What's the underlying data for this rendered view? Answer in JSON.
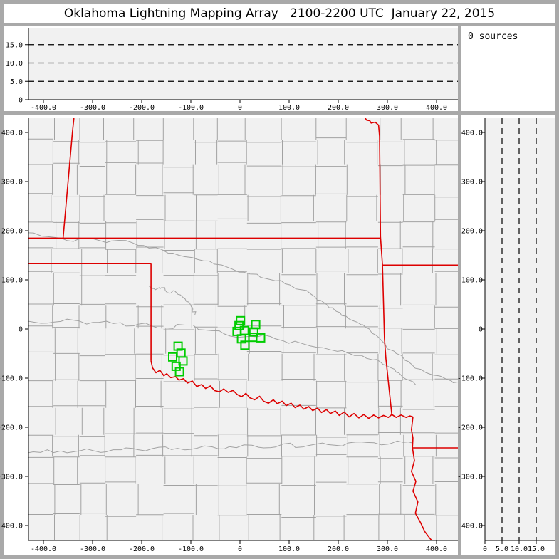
{
  "title": "Oklahoma Lightning Mapping Array   2100-2200 UTC  January 22, 2015",
  "annotations": {
    "sources_count_label": "0 sources"
  },
  "colors": {
    "frame": "#a9a9a9",
    "panel_bg": "#ffffff",
    "plot_bg": "#f1f1f1",
    "county_line": "#a2a2a2",
    "river_line": "#a2a2a2",
    "state_border": "#dd0000",
    "station": "#00cc00",
    "axis": "#000000"
  },
  "chart_data": [
    {
      "id": "alt_vs_ew",
      "type": "scatter",
      "title": "",
      "x_range_km": [
        -430,
        443
      ],
      "y_range_km": [
        0,
        19.5
      ],
      "x_tick_values": [
        -400,
        -300,
        -200,
        -100,
        0,
        100,
        200,
        300,
        400
      ],
      "x_tick_labels": [
        "-400.0",
        "-300.0",
        "-200.0",
        "-100.0",
        "0",
        "100.0",
        "200.0",
        "300.0",
        "400.0"
      ],
      "y_tick_values": [
        15,
        10,
        5,
        0
      ],
      "y_tick_labels": [
        "15.0",
        "10.0",
        "5.0",
        "0"
      ],
      "dashed_gridlines_km": [
        5,
        10,
        15
      ],
      "points": [],
      "grid": "dashed-horizontal",
      "legend": "none"
    },
    {
      "id": "plan_view_map",
      "type": "scatter",
      "title": "",
      "x_range_km": [
        -430,
        443
      ],
      "y_range_km": [
        -430,
        429
      ],
      "x_tick_values": [
        -400,
        -300,
        -200,
        -100,
        0,
        100,
        200,
        300,
        400
      ],
      "x_tick_labels": [
        "-400.0",
        "-300.0",
        "-200.0",
        "-100.0",
        "0",
        "100.0",
        "200.0",
        "300.0",
        "400.0"
      ],
      "y_tick_values": [
        400,
        300,
        200,
        100,
        0,
        -100,
        -200,
        -300,
        -400
      ],
      "y_tick_labels": [
        "400.0",
        "300.0",
        "200.0",
        "100.0",
        "0",
        "-100.0",
        "-200.0",
        "-300.0",
        "-400.0"
      ],
      "series": [
        {
          "name": "lma_stations",
          "marker": "open-square",
          "color": "#00cc00",
          "points_km": [
            [
              1,
              17
            ],
            [
              -2,
              7
            ],
            [
              -6,
              -5
            ],
            [
              9,
              -3
            ],
            [
              32,
              9
            ],
            [
              28,
              -6
            ],
            [
              3,
              -20
            ],
            [
              26,
              -17
            ],
            [
              42,
              -18
            ],
            [
              10,
              -33
            ],
            [
              -126,
              -35
            ],
            [
              -120,
              -49
            ],
            [
              -137,
              -57
            ],
            [
              -116,
              -65
            ],
            [
              -130,
              -76
            ],
            [
              -123,
              -87
            ]
          ]
        }
      ],
      "state_borders_km": [
        [
          [
            -432,
            185
          ],
          [
            285,
            185
          ]
        ],
        [
          [
            -338,
            429
          ],
          [
            -341,
            400
          ],
          [
            -360,
            185
          ]
        ],
        [
          [
            255,
            429
          ],
          [
            258,
            425
          ],
          [
            264,
            424
          ],
          [
            267,
            419
          ],
          [
            275,
            421
          ],
          [
            282,
            415
          ],
          [
            284,
            392
          ],
          [
            286,
            188
          ],
          [
            290,
            130
          ]
        ],
        [
          [
            290,
            130
          ],
          [
            444,
            130
          ]
        ],
        [
          [
            290,
            130
          ],
          [
            294,
            -20
          ],
          [
            297,
            -60
          ],
          [
            309,
            -174
          ]
        ],
        [
          [
            -432,
            133
          ],
          [
            -181,
            133
          ]
        ],
        [
          [
            -181,
            133
          ],
          [
            -181,
            -65
          ]
        ],
        [
          [
            -181,
            -65
          ],
          [
            -178,
            -79
          ],
          [
            -171,
            -89
          ],
          [
            -163,
            -84
          ],
          [
            -155,
            -95
          ],
          [
            -149,
            -91
          ],
          [
            -141,
            -99
          ],
          [
            -131,
            -97
          ],
          [
            -124,
            -104
          ],
          [
            -115,
            -101
          ],
          [
            -107,
            -110
          ],
          [
            -97,
            -106
          ],
          [
            -88,
            -117
          ],
          [
            -78,
            -113
          ],
          [
            -70,
            -121
          ],
          [
            -60,
            -116
          ],
          [
            -52,
            -125
          ],
          [
            -42,
            -128
          ],
          [
            -33,
            -122
          ],
          [
            -24,
            -129
          ],
          [
            -14,
            -125
          ],
          [
            -6,
            -133
          ],
          [
            3,
            -138
          ],
          [
            12,
            -131
          ],
          [
            20,
            -140
          ],
          [
            30,
            -144
          ],
          [
            40,
            -137
          ],
          [
            48,
            -147
          ],
          [
            58,
            -151
          ],
          [
            68,
            -144
          ],
          [
            76,
            -152
          ],
          [
            86,
            -147
          ],
          [
            94,
            -156
          ],
          [
            104,
            -151
          ],
          [
            112,
            -160
          ],
          [
            122,
            -155
          ],
          [
            130,
            -163
          ],
          [
            140,
            -158
          ],
          [
            148,
            -166
          ],
          [
            158,
            -161
          ],
          [
            166,
            -170
          ],
          [
            176,
            -164
          ],
          [
            184,
            -172
          ],
          [
            194,
            -167
          ],
          [
            202,
            -176
          ],
          [
            212,
            -169
          ],
          [
            222,
            -179
          ],
          [
            232,
            -172
          ],
          [
            242,
            -181
          ],
          [
            252,
            -174
          ],
          [
            262,
            -182
          ],
          [
            272,
            -175
          ],
          [
            282,
            -181
          ],
          [
            292,
            -176
          ],
          [
            302,
            -180
          ],
          [
            309,
            -174
          ],
          [
            318,
            -180
          ],
          [
            328,
            -175
          ],
          [
            338,
            -180
          ],
          [
            346,
            -177
          ],
          [
            352,
            -179
          ]
        ],
        [
          [
            352,
            -179
          ],
          [
            349,
            -205
          ],
          [
            352,
            -222
          ],
          [
            351,
            -242
          ]
        ],
        [
          [
            351,
            -242
          ],
          [
            444,
            -242
          ]
        ],
        [
          [
            351,
            -242
          ],
          [
            355,
            -268
          ],
          [
            349,
            -290
          ],
          [
            358,
            -310
          ],
          [
            352,
            -330
          ],
          [
            362,
            -352
          ],
          [
            357,
            -375
          ],
          [
            368,
            -395
          ],
          [
            376,
            -412
          ],
          [
            388,
            -428
          ],
          [
            396,
            -434
          ]
        ]
      ],
      "rivers_km": [
        [
          [
            -432,
            196
          ],
          [
            -392,
            188
          ],
          [
            -352,
            180
          ],
          [
            -312,
            184
          ],
          [
            -272,
            176
          ],
          [
            -232,
            180
          ],
          [
            -196,
            170
          ],
          [
            -160,
            162
          ],
          [
            -124,
            150
          ],
          [
            -88,
            142
          ],
          [
            -52,
            132
          ],
          [
            -16,
            122
          ],
          [
            20,
            112
          ],
          [
            56,
            102
          ],
          [
            92,
            92
          ],
          [
            124,
            80
          ],
          [
            152,
            66
          ],
          [
            176,
            50
          ],
          [
            196,
            36
          ],
          [
            216,
            26
          ],
          [
            238,
            14
          ],
          [
            258,
            2
          ],
          [
            276,
            -12
          ],
          [
            296,
            -32
          ],
          [
            318,
            -50
          ],
          [
            342,
            -66
          ],
          [
            368,
            -82
          ],
          [
            394,
            -94
          ],
          [
            420,
            -102
          ],
          [
            444,
            -108
          ]
        ],
        [
          [
            -432,
            16
          ],
          [
            -392,
            12
          ],
          [
            -352,
            20
          ],
          [
            -312,
            10
          ],
          [
            -272,
            16
          ],
          [
            -232,
            6
          ],
          [
            -192,
            12
          ],
          [
            -152,
            2
          ],
          [
            -112,
            8
          ],
          [
            -72,
            -2
          ],
          [
            -32,
            -10
          ],
          [
            8,
            -16
          ],
          [
            48,
            -12
          ],
          [
            88,
            -24
          ],
          [
            128,
            -30
          ],
          [
            168,
            -38
          ],
          [
            208,
            -44
          ],
          [
            248,
            -54
          ],
          [
            278,
            -62
          ],
          [
            298,
            -74
          ],
          [
            318,
            -88
          ],
          [
            338,
            -102
          ],
          [
            358,
            -114
          ]
        ],
        [
          [
            -186,
            88
          ],
          [
            -172,
            80
          ],
          [
            -160,
            84
          ],
          [
            -148,
            74
          ],
          [
            -136,
            78
          ],
          [
            -124,
            70
          ],
          [
            -112,
            62
          ],
          [
            -102,
            52
          ],
          [
            -96,
            40
          ],
          [
            -92,
            28
          ]
        ],
        [
          [
            -432,
            -252
          ],
          [
            -392,
            -246
          ],
          [
            -352,
            -252
          ],
          [
            -312,
            -244
          ],
          [
            -272,
            -250
          ],
          [
            -232,
            -242
          ],
          [
            -192,
            -248
          ],
          [
            -152,
            -240
          ],
          [
            -112,
            -246
          ],
          [
            -72,
            -238
          ],
          [
            -32,
            -244
          ],
          [
            8,
            -236
          ],
          [
            48,
            -242
          ],
          [
            88,
            -234
          ],
          [
            128,
            -240
          ],
          [
            168,
            -232
          ],
          [
            208,
            -238
          ],
          [
            248,
            -230
          ],
          [
            288,
            -236
          ],
          [
            320,
            -228
          ],
          [
            351,
            -232
          ]
        ]
      ]
    },
    {
      "id": "alt_vs_ns",
      "type": "scatter",
      "title": "",
      "x_range_km": [
        0,
        20.4
      ],
      "y_range_km": [
        -430,
        429
      ],
      "x_tick_values": [
        0,
        5,
        10,
        15
      ],
      "x_tick_labels": [
        "0",
        "5.0",
        "10.0",
        "15.0"
      ],
      "y_tick_values": [
        400,
        300,
        200,
        100,
        0,
        -100,
        -200,
        -300,
        -400
      ],
      "y_tick_labels": [
        "400.0",
        "300.0",
        "200.0",
        "100.0",
        "0",
        "-100.0",
        "-200.0",
        "-300.0",
        "-400.0"
      ],
      "dashed_gridlines_km": [
        5,
        10,
        15
      ],
      "points": [],
      "grid": "dashed-vertical",
      "legend": "none"
    }
  ]
}
